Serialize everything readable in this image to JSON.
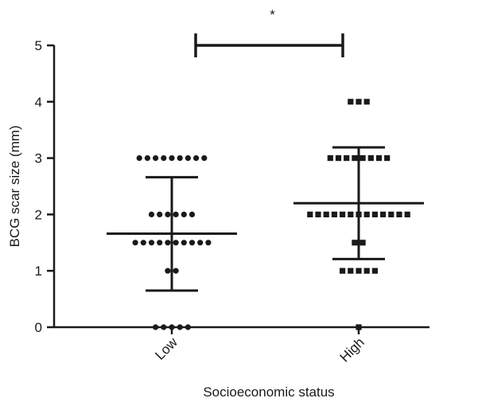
{
  "chart_data": {
    "type": "scatter",
    "xlabel": "Socioeconomic status",
    "ylabel": "BCG scar size (mm)",
    "ylim": [
      0,
      5
    ],
    "yticks": [
      0,
      1,
      2,
      3,
      4,
      5
    ],
    "categories": [
      "Low",
      "High"
    ],
    "significance": {
      "label": "*",
      "between": [
        "Low",
        "High"
      ],
      "y": 5
    },
    "groups": [
      {
        "category": "Low",
        "marker": "circle",
        "mean": 1.66,
        "sd_upper": 2.66,
        "sd_lower": 0.65,
        "points": [
          {
            "y": 3,
            "count": 9
          },
          {
            "y": 2,
            "count": 6
          },
          {
            "y": 1.5,
            "count": 10
          },
          {
            "y": 1,
            "count": 2
          },
          {
            "y": 0,
            "count": 5
          }
        ]
      },
      {
        "category": "High",
        "marker": "square",
        "mean": 2.2,
        "sd_upper": 3.19,
        "sd_lower": 1.21,
        "points": [
          {
            "y": 4,
            "count": 3
          },
          {
            "y": 3,
            "count": 8
          },
          {
            "y": 2,
            "count": 13
          },
          {
            "y": 1.5,
            "count": 2
          },
          {
            "y": 1,
            "count": 5
          },
          {
            "y": 0,
            "count": 1
          }
        ]
      }
    ]
  }
}
